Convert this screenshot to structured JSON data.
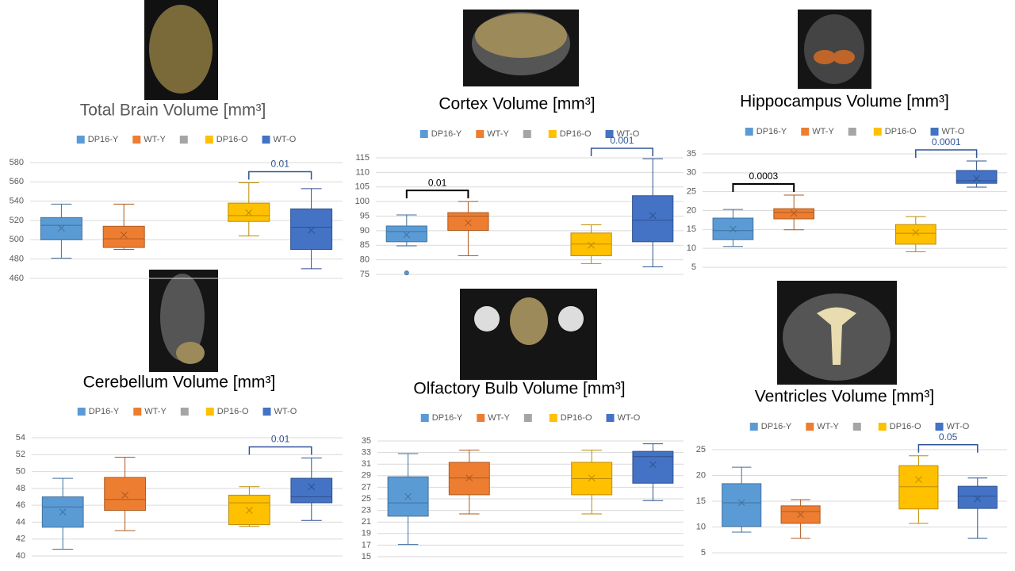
{
  "chart_data": [
    {
      "type": "box",
      "title": "Total Brain Volume [mm³]",
      "title_color": "#595959",
      "ylim": [
        460,
        580
      ],
      "yticks": [
        460,
        480,
        500,
        520,
        540,
        560,
        580
      ],
      "grid": true,
      "series": [
        {
          "name": "DP16-Y",
          "color": "#5b9bd5",
          "edge": "#41719c",
          "box": {
            "min": 481,
            "q1": 500,
            "median": 515,
            "q3": 523,
            "max": 537,
            "mean": 512
          }
        },
        {
          "name": "WT-Y",
          "color": "#ed7d31",
          "edge": "#ae5a21",
          "box": {
            "min": 490,
            "q1": 492,
            "median": 501,
            "q3": 514,
            "max": 537,
            "mean": 505
          }
        },
        {
          "name": null,
          "color": "#a5a5a5",
          "edge": "#787878",
          "box": null
        },
        {
          "name": "DP16-O",
          "color": "#ffc000",
          "edge": "#bc8c00",
          "box": {
            "min": 504,
            "q1": 519,
            "median": 525,
            "q3": 538,
            "max": 559,
            "mean": 528
          }
        },
        {
          "name": "WT-O",
          "color": "#4472c4",
          "edge": "#2f528f",
          "box": {
            "min": 470,
            "q1": 490,
            "median": 513,
            "q3": 532,
            "max": 553,
            "mean": 510
          }
        }
      ],
      "annotations": [
        {
          "label": "0.01",
          "between": [
            3,
            4
          ],
          "color": "#2f5597"
        }
      ]
    },
    {
      "type": "box",
      "title": "Cortex Volume [mm³]",
      "title_color": "#000000",
      "ylim": [
        75,
        115
      ],
      "yticks": [
        75,
        80,
        85,
        90,
        95,
        100,
        105,
        110,
        115
      ],
      "grid": true,
      "series": [
        {
          "name": "DP16-Y",
          "color": "#5b9bd5",
          "edge": "#41719c",
          "box": {
            "min": 84.8,
            "q1": 86.2,
            "median": 89.7,
            "q3": 91.6,
            "max": 95.4,
            "mean": 88.6
          },
          "outliers": [
            75.5
          ]
        },
        {
          "name": "WT-Y",
          "color": "#ed7d31",
          "edge": "#ae5a21",
          "box": {
            "min": 81.4,
            "q1": 90.1,
            "median": 95,
            "q3": 96.2,
            "max": 100,
            "mean": 92.7
          }
        },
        {
          "name": null,
          "color": "#a5a5a5",
          "edge": "#787878",
          "box": null
        },
        {
          "name": "DP16-O",
          "color": "#ffc000",
          "edge": "#bc8c00",
          "box": {
            "min": 78.7,
            "q1": 81.4,
            "median": 85.4,
            "q3": 89.2,
            "max": 92,
            "mean": 85
          }
        },
        {
          "name": "WT-O",
          "color": "#4472c4",
          "edge": "#2f528f",
          "box": {
            "min": 77.6,
            "q1": 86.2,
            "median": 93.6,
            "q3": 102,
            "max": 114.7,
            "mean": 95.2
          }
        }
      ],
      "annotations": [
        {
          "label": "0.01",
          "between": [
            0,
            1
          ],
          "color": "#000000"
        },
        {
          "label": "0.001",
          "between": [
            3,
            4
          ],
          "color": "#2f5597"
        }
      ]
    },
    {
      "type": "box",
      "title": "Hippocampus Volume [mm³]",
      "title_color": "#000000",
      "ylim": [
        5,
        35
      ],
      "yticks": [
        5,
        10,
        15,
        20,
        25,
        30,
        35
      ],
      "grid": true,
      "series": [
        {
          "name": "DP16-Y",
          "color": "#5b9bd5",
          "edge": "#41719c",
          "box": {
            "min": 10.5,
            "q1": 12.3,
            "median": 14.7,
            "q3": 18,
            "max": 20.3,
            "mean": 15.1
          }
        },
        {
          "name": "WT-Y",
          "color": "#ed7d31",
          "edge": "#ae5a21",
          "box": {
            "min": 14.9,
            "q1": 17.8,
            "median": 19.5,
            "q3": 20.5,
            "max": 24.1,
            "mean": 19.3
          }
        },
        {
          "name": null,
          "color": "#a5a5a5",
          "edge": "#787878",
          "box": null
        },
        {
          "name": "DP16-O",
          "color": "#ffc000",
          "edge": "#bc8c00",
          "box": {
            "min": 9.1,
            "q1": 11.1,
            "median": 14,
            "q3": 16.3,
            "max": 18.4,
            "mean": 14.2
          }
        },
        {
          "name": "WT-O",
          "color": "#4472c4",
          "edge": "#2f528f",
          "box": {
            "min": 26.2,
            "q1": 27.2,
            "median": 27.9,
            "q3": 30.6,
            "max": 33.1,
            "mean": 28.5
          }
        }
      ],
      "annotations": [
        {
          "label": "0.0003",
          "between": [
            0,
            1
          ],
          "color": "#000000"
        },
        {
          "label": "0.0001",
          "between": [
            3,
            4
          ],
          "color": "#2f5597"
        }
      ]
    },
    {
      "type": "box",
      "title": "Cerebellum Volume [mm³]",
      "title_color": "#000000",
      "ylim": [
        40,
        54
      ],
      "yticks": [
        40,
        42,
        44,
        46,
        48,
        50,
        52,
        54
      ],
      "grid": true,
      "series": [
        {
          "name": "DP16-Y",
          "color": "#5b9bd5",
          "edge": "#41719c",
          "box": {
            "min": 40.8,
            "q1": 43.4,
            "median": 45.8,
            "q3": 47,
            "max": 49.2,
            "mean": 45.2
          }
        },
        {
          "name": "WT-Y",
          "color": "#ed7d31",
          "edge": "#ae5a21",
          "box": {
            "min": 43,
            "q1": 45.4,
            "median": 46.7,
            "q3": 49.3,
            "max": 51.7,
            "mean": 47.2
          }
        },
        {
          "name": null,
          "color": "#a5a5a5",
          "edge": "#787878",
          "box": null
        },
        {
          "name": "DP16-O",
          "color": "#ffc000",
          "edge": "#bc8c00",
          "box": {
            "min": 43.5,
            "q1": 43.7,
            "median": 46.3,
            "q3": 47.2,
            "max": 48.2,
            "mean": 45.4
          }
        },
        {
          "name": "WT-O",
          "color": "#4472c4",
          "edge": "#2f528f",
          "box": {
            "min": 44.2,
            "q1": 46.3,
            "median": 47,
            "q3": 49.2,
            "max": 51.6,
            "mean": 48.2
          }
        }
      ],
      "annotations": [
        {
          "label": "0.01",
          "between": [
            3,
            4
          ],
          "color": "#2f5597"
        }
      ]
    },
    {
      "type": "box",
      "title": "Olfactory Bulb Volume [mm³]",
      "title_color": "#000000",
      "ylim": [
        15,
        35
      ],
      "yticks": [
        15,
        17,
        19,
        21,
        23,
        25,
        27,
        29,
        31,
        33,
        35
      ],
      "grid": true,
      "series": [
        {
          "name": "DP16-Y",
          "color": "#5b9bd5",
          "edge": "#41719c",
          "box": {
            "min": 17.1,
            "q1": 22,
            "median": 24.3,
            "q3": 28.8,
            "max": 32.8,
            "mean": 25.4
          }
        },
        {
          "name": "WT-Y",
          "color": "#ed7d31",
          "edge": "#ae5a21",
          "box": {
            "min": 22.4,
            "q1": 25.7,
            "median": 28.6,
            "q3": 31.3,
            "max": 33.4,
            "mean": 28.6
          }
        },
        {
          "name": null,
          "color": "#a5a5a5",
          "edge": "#787878",
          "box": null
        },
        {
          "name": "DP16-O",
          "color": "#ffc000",
          "edge": "#bc8c00",
          "box": {
            "min": 22.4,
            "q1": 25.7,
            "median": 28.5,
            "q3": 31.3,
            "max": 33.4,
            "mean": 28.6
          }
        },
        {
          "name": "WT-O",
          "color": "#4472c4",
          "edge": "#2f528f",
          "box": {
            "min": 24.7,
            "q1": 27.7,
            "median": 32.3,
            "q3": 33.2,
            "max": 34.5,
            "mean": 30.9
          }
        }
      ],
      "annotations": []
    },
    {
      "type": "box",
      "title": "Ventricles Volume [mm³]",
      "title_color": "#000000",
      "ylim": [
        5,
        25
      ],
      "yticks": [
        5,
        10,
        15,
        20,
        25
      ],
      "grid": true,
      "series": [
        {
          "name": "DP16-Y",
          "color": "#5b9bd5",
          "edge": "#41719c",
          "box": {
            "min": 9,
            "q1": 10.1,
            "median": 14.7,
            "q3": 18.4,
            "max": 21.6,
            "mean": 14.7
          }
        },
        {
          "name": "WT-Y",
          "color": "#ed7d31",
          "edge": "#ae5a21",
          "box": {
            "min": 7.8,
            "q1": 10.7,
            "median": 13,
            "q3": 14.1,
            "max": 15.3,
            "mean": 12.4
          }
        },
        {
          "name": null,
          "color": "#a5a5a5",
          "edge": "#787878",
          "box": null
        },
        {
          "name": "DP16-O",
          "color": "#ffc000",
          "edge": "#bc8c00",
          "box": {
            "min": 10.7,
            "q1": 13.5,
            "median": 17.8,
            "q3": 21.9,
            "max": 23.8,
            "mean": 19.2
          }
        },
        {
          "name": "WT-O",
          "color": "#4472c4",
          "edge": "#2f528f",
          "box": {
            "min": 7.8,
            "q1": 13.6,
            "median": 16,
            "q3": 17.9,
            "max": 19.5,
            "mean": 15.5
          }
        }
      ],
      "annotations": [
        {
          "label": "0.05",
          "between": [
            3,
            4
          ],
          "color": "#2f5597"
        }
      ]
    }
  ]
}
